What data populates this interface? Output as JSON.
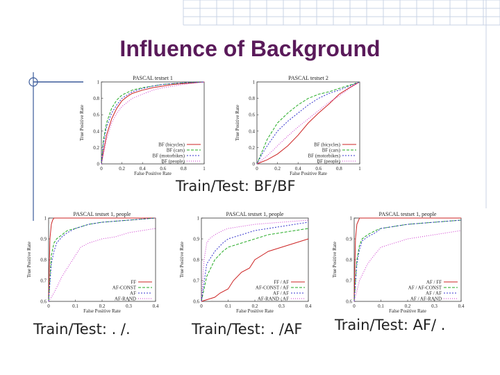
{
  "slide": {
    "title": "Influence of Background",
    "caption_top": "Train/Test: BF/BF",
    "caption_bl": "Train/Test: . /.",
    "caption_bm": "Train/Test: . /AF",
    "caption_br": "Train/Test: AF/ ."
  },
  "colors": {
    "title": "#5a1a5a",
    "grid": "#c9d3e6",
    "rule": "#3a5a9a"
  },
  "chart_data": [
    {
      "type": "line",
      "title": "PASCAL testset 1",
      "xlabel": "False Positive Rate",
      "ylabel": "True Positive Rate",
      "xlim": [
        0,
        1
      ],
      "ylim": [
        0,
        1
      ],
      "xticks": [
        "0",
        "0.2",
        "0.4",
        "0.6",
        "0.8",
        "1"
      ],
      "yticks": [
        "0",
        "0.2",
        "0.4",
        "0.6",
        "0.8",
        "1"
      ],
      "legend_position": "bottom-right",
      "series": [
        {
          "name": "BF (bicycles)",
          "color": "#cc2222",
          "dash": "",
          "x": [
            0,
            0.02,
            0.05,
            0.1,
            0.15,
            0.2,
            0.25,
            0.3,
            0.4,
            0.5,
            0.6,
            0.7,
            0.8,
            0.9,
            1
          ],
          "y": [
            0,
            0.15,
            0.35,
            0.55,
            0.68,
            0.77,
            0.82,
            0.86,
            0.9,
            0.93,
            0.95,
            0.97,
            0.98,
            0.99,
            1
          ]
        },
        {
          "name": "BF (cars)",
          "color": "#22aa22",
          "dash": "4 2",
          "x": [
            0,
            0.02,
            0.05,
            0.1,
            0.15,
            0.2,
            0.3,
            0.4,
            0.5,
            0.6,
            0.8,
            1
          ],
          "y": [
            0,
            0.3,
            0.5,
            0.68,
            0.78,
            0.84,
            0.9,
            0.93,
            0.95,
            0.97,
            0.99,
            1
          ]
        },
        {
          "name": "BF (motorbikes)",
          "color": "#3333cc",
          "dash": "2 2",
          "x": [
            0,
            0.02,
            0.05,
            0.1,
            0.15,
            0.2,
            0.3,
            0.4,
            0.5,
            0.6,
            0.8,
            1
          ],
          "y": [
            0,
            0.25,
            0.45,
            0.62,
            0.72,
            0.8,
            0.88,
            0.92,
            0.95,
            0.97,
            0.99,
            1
          ]
        },
        {
          "name": "BF (people)",
          "color": "#cc33cc",
          "dash": "1 2",
          "x": [
            0,
            0.05,
            0.1,
            0.15,
            0.2,
            0.3,
            0.4,
            0.5,
            0.6,
            0.7,
            0.8,
            1
          ],
          "y": [
            0,
            0.3,
            0.5,
            0.62,
            0.7,
            0.8,
            0.85,
            0.9,
            0.93,
            0.95,
            0.97,
            1
          ]
        }
      ]
    },
    {
      "type": "line",
      "title": "PASCAL testset 2",
      "xlabel": "False Positive Rate",
      "ylabel": "True Positive Rate",
      "xlim": [
        0,
        1
      ],
      "ylim": [
        0,
        1
      ],
      "xticks": [
        "0",
        "0.2",
        "0.4",
        "0.6",
        "0.8",
        "1"
      ],
      "yticks": [
        "0",
        "0.2",
        "0.4",
        "0.6",
        "0.8",
        "1"
      ],
      "legend_position": "bottom-right",
      "series": [
        {
          "name": "BF (bicycles)",
          "color": "#cc2222",
          "dash": "",
          "x": [
            0,
            0.1,
            0.2,
            0.3,
            0.4,
            0.5,
            0.6,
            0.7,
            0.8,
            0.9,
            1
          ],
          "y": [
            0,
            0.05,
            0.12,
            0.22,
            0.35,
            0.5,
            0.62,
            0.73,
            0.85,
            0.93,
            1
          ]
        },
        {
          "name": "BF (cars)",
          "color": "#22aa22",
          "dash": "4 2",
          "x": [
            0,
            0.05,
            0.1,
            0.2,
            0.3,
            0.4,
            0.5,
            0.6,
            0.7,
            0.8,
            0.9,
            1
          ],
          "y": [
            0,
            0.15,
            0.3,
            0.5,
            0.62,
            0.72,
            0.8,
            0.85,
            0.88,
            0.92,
            0.96,
            1
          ]
        },
        {
          "name": "BF (motorbikes)",
          "color": "#3333cc",
          "dash": "2 2",
          "x": [
            0,
            0.05,
            0.1,
            0.2,
            0.3,
            0.4,
            0.5,
            0.6,
            0.7,
            0.8,
            0.9,
            1
          ],
          "y": [
            0,
            0.12,
            0.22,
            0.4,
            0.52,
            0.62,
            0.72,
            0.8,
            0.86,
            0.9,
            0.95,
            1
          ]
        },
        {
          "name": "BF (people)",
          "color": "#cc33cc",
          "dash": "1 2",
          "x": [
            0,
            0.1,
            0.2,
            0.3,
            0.4,
            0.5,
            0.6,
            0.7,
            0.8,
            0.9,
            1
          ],
          "y": [
            0,
            0.1,
            0.22,
            0.34,
            0.45,
            0.55,
            0.65,
            0.75,
            0.83,
            0.92,
            1
          ]
        }
      ]
    },
    {
      "type": "line",
      "title": "PASCAL testset 1, people",
      "xlabel": "False Positive Rate",
      "ylabel": "True Positive Rate",
      "xlim": [
        0,
        0.4
      ],
      "ylim": [
        0.6,
        1
      ],
      "xticks": [
        "0",
        "0.1",
        "0.2",
        "0.3",
        "0.4"
      ],
      "yticks": [
        "0.6",
        "0.7",
        "0.8",
        "0.9",
        "1"
      ],
      "legend_position": "bottom-right",
      "series": [
        {
          "name": "FF",
          "color": "#cc2222",
          "dash": "",
          "x": [
            0,
            0.005,
            0.01,
            0.015,
            0.02,
            0.05,
            0.1,
            0.2,
            0.3,
            0.4
          ],
          "y": [
            0.6,
            0.9,
            0.97,
            0.99,
            1,
            1,
            1,
            1,
            1,
            1
          ]
        },
        {
          "name": "AF-CONST",
          "color": "#22aa22",
          "dash": "4 2",
          "x": [
            0,
            0.01,
            0.02,
            0.03,
            0.05,
            0.07,
            0.1,
            0.15,
            0.2,
            0.3,
            0.4
          ],
          "y": [
            0.6,
            0.82,
            0.88,
            0.9,
            0.92,
            0.94,
            0.95,
            0.97,
            0.98,
            0.99,
            1
          ]
        },
        {
          "name": "AF",
          "color": "#3333cc",
          "dash": "2 2",
          "x": [
            0,
            0.01,
            0.02,
            0.03,
            0.05,
            0.07,
            0.1,
            0.15,
            0.2,
            0.3,
            0.4
          ],
          "y": [
            0.6,
            0.78,
            0.84,
            0.88,
            0.91,
            0.93,
            0.95,
            0.97,
            0.98,
            0.99,
            1
          ]
        },
        {
          "name": "AF-RAND",
          "color": "#cc33cc",
          "dash": "1 2",
          "x": [
            0,
            0.02,
            0.05,
            0.08,
            0.1,
            0.12,
            0.15,
            0.2,
            0.25,
            0.3,
            0.4
          ],
          "y": [
            0.6,
            0.64,
            0.72,
            0.78,
            0.82,
            0.86,
            0.88,
            0.9,
            0.91,
            0.93,
            0.95
          ]
        }
      ]
    },
    {
      "type": "line",
      "title": "PASCAL testset 1, people",
      "xlabel": "False Positive Rate",
      "ylabel": "True Positive Rate",
      "xlim": [
        0,
        0.4
      ],
      "ylim": [
        0.6,
        1
      ],
      "xticks": [
        "0",
        "0.1",
        "0.2",
        "0.3",
        "0.4"
      ],
      "yticks": [
        "0.6",
        "0.7",
        "0.8",
        "0.9",
        "1"
      ],
      "legend_position": "bottom-right",
      "series": [
        {
          "name": "FF / AF",
          "color": "#cc2222",
          "dash": "",
          "x": [
            0,
            0.05,
            0.07,
            0.1,
            0.12,
            0.15,
            0.18,
            0.2,
            0.25,
            0.3,
            0.35,
            0.4
          ],
          "y": [
            0.6,
            0.62,
            0.64,
            0.66,
            0.7,
            0.74,
            0.76,
            0.8,
            0.84,
            0.86,
            0.88,
            0.9
          ]
        },
        {
          "name": "AF-CONST / AF",
          "color": "#22aa22",
          "dash": "4 2",
          "x": [
            0,
            0.02,
            0.05,
            0.08,
            0.1,
            0.15,
            0.2,
            0.25,
            0.3,
            0.35,
            0.4
          ],
          "y": [
            0.6,
            0.72,
            0.8,
            0.84,
            0.86,
            0.88,
            0.9,
            0.92,
            0.93,
            0.94,
            0.95
          ]
        },
        {
          "name": "AF / AF",
          "color": "#3333cc",
          "dash": "2 2",
          "x": [
            0,
            0.02,
            0.05,
            0.08,
            0.1,
            0.15,
            0.2,
            0.25,
            0.3,
            0.35,
            0.4
          ],
          "y": [
            0.6,
            0.78,
            0.84,
            0.88,
            0.9,
            0.92,
            0.94,
            0.95,
            0.96,
            0.97,
            0.98
          ]
        },
        {
          "name": "AF-RAND / AF",
          "color": "#cc33cc",
          "dash": "1 2",
          "x": [
            0,
            0.01,
            0.02,
            0.03,
            0.05,
            0.08,
            0.1,
            0.15,
            0.2,
            0.3,
            0.4
          ],
          "y": [
            0.6,
            0.8,
            0.88,
            0.9,
            0.92,
            0.94,
            0.95,
            0.96,
            0.97,
            0.98,
            0.99
          ]
        }
      ]
    },
    {
      "type": "line",
      "title": "PASCAL testset 1, people",
      "xlabel": "False Positive Rate",
      "ylabel": "True Positive Rate",
      "xlim": [
        0,
        0.4
      ],
      "ylim": [
        0.6,
        1
      ],
      "xticks": [
        "0",
        "0.1",
        "0.2",
        "0.3",
        "0.4"
      ],
      "yticks": [
        "0.6",
        "0.7",
        "0.8",
        "0.9",
        "1"
      ],
      "legend_position": "bottom-right",
      "series": [
        {
          "name": "AF / FF",
          "color": "#cc2222",
          "dash": "",
          "x": [
            0,
            0.005,
            0.01,
            0.02,
            0.05,
            0.1,
            0.2,
            0.3,
            0.4
          ],
          "y": [
            0.6,
            0.9,
            0.97,
            1,
            1,
            1,
            1,
            1,
            1
          ]
        },
        {
          "name": "AF / AF-CONST",
          "color": "#22aa22",
          "dash": "4 2",
          "x": [
            0,
            0.01,
            0.02,
            0.03,
            0.05,
            0.08,
            0.1,
            0.15,
            0.2,
            0.3,
            0.4
          ],
          "y": [
            0.6,
            0.8,
            0.87,
            0.9,
            0.92,
            0.94,
            0.95,
            0.96,
            0.97,
            0.98,
            0.99
          ]
        },
        {
          "name": "AF / AF",
          "color": "#3333cc",
          "dash": "2 2",
          "x": [
            0,
            0.01,
            0.02,
            0.03,
            0.05,
            0.08,
            0.1,
            0.15,
            0.2,
            0.3,
            0.4
          ],
          "y": [
            0.6,
            0.78,
            0.85,
            0.89,
            0.91,
            0.93,
            0.95,
            0.96,
            0.97,
            0.98,
            0.99
          ]
        },
        {
          "name": "AF / AF-RAND",
          "color": "#cc33cc",
          "dash": "1 2",
          "x": [
            0,
            0.02,
            0.05,
            0.08,
            0.1,
            0.15,
            0.2,
            0.25,
            0.3,
            0.4
          ],
          "y": [
            0.6,
            0.7,
            0.78,
            0.83,
            0.86,
            0.88,
            0.9,
            0.91,
            0.92,
            0.94
          ]
        }
      ]
    }
  ]
}
